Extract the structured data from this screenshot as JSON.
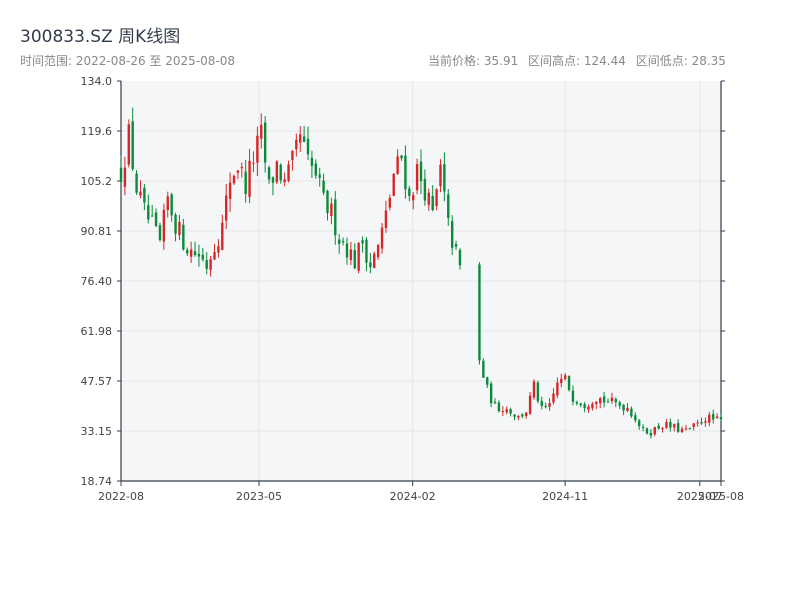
{
  "header": {
    "title": "300833.SZ 周K线图",
    "range_label": "时间范围: 2022-08-26 至 2025-08-08",
    "stat_current": "当前价格: 35.91",
    "stat_high": "区间高点: 124.44",
    "stat_low": "区间低点: 28.35"
  },
  "colors": {
    "up": "#d62728",
    "down": "#0a8a3a",
    "plot_bg": "#f5f6f8",
    "axis": "#333d4a",
    "grid": "#e3e5e8"
  },
  "chart_data": {
    "type": "candlestick",
    "title": "300833.SZ 周K线图",
    "x_start": "2022-08-26",
    "x_end": "2025-08-08",
    "ylim": [
      18.74,
      134.0
    ],
    "y_ticks": [
      "134.0",
      "119.6",
      "105.2",
      "90.81",
      "76.40",
      "61.98",
      "47.57",
      "33.15",
      "18.74"
    ],
    "x_ticks": [
      {
        "date": "2022-08-26",
        "label": "2022-08"
      },
      {
        "date": "2023-05-01",
        "label": "2023-05"
      },
      {
        "date": "2024-02-01",
        "label": "2024-02"
      },
      {
        "date": "2024-11-01",
        "label": "2024-11"
      },
      {
        "date": "2025-07-01",
        "label": "2025-07"
      },
      {
        "date": "2025-08-08",
        "label": "2025-08"
      }
    ],
    "grid": true,
    "series": [
      {
        "name": "",
        "anchors": [
          [
            "2022-08-26",
            108
          ],
          [
            "2022-09-09",
            118
          ],
          [
            "2022-09-23",
            103
          ],
          [
            "2022-10-07",
            96
          ],
          [
            "2022-10-21",
            92
          ],
          [
            "2022-11-04",
            87
          ],
          [
            "2022-11-18",
            100
          ],
          [
            "2022-12-02",
            93
          ],
          [
            "2022-12-16",
            88
          ],
          [
            "2022-12-30",
            85
          ],
          [
            "2023-01-13",
            84
          ],
          [
            "2023-01-27",
            81
          ],
          [
            "2023-02-10",
            87
          ],
          [
            "2023-02-24",
            92
          ],
          [
            "2023-03-10",
            106
          ],
          [
            "2023-03-24",
            110
          ],
          [
            "2023-04-07",
            104
          ],
          [
            "2023-04-21",
            112
          ],
          [
            "2023-05-05",
            118
          ],
          [
            "2023-05-19",
            103
          ],
          [
            "2023-06-02",
            110
          ],
          [
            "2023-06-16",
            104
          ],
          [
            "2023-06-30",
            110
          ],
          [
            "2023-07-14",
            118
          ],
          [
            "2023-07-28",
            110
          ],
          [
            "2023-08-11",
            107
          ],
          [
            "2023-08-25",
            99
          ],
          [
            "2023-09-08",
            96
          ],
          [
            "2023-09-22",
            89
          ],
          [
            "2023-10-06",
            86
          ],
          [
            "2023-10-20",
            82
          ],
          [
            "2023-11-03",
            88
          ],
          [
            "2023-11-17",
            81
          ],
          [
            "2023-12-01",
            86
          ],
          [
            "2023-12-15",
            95
          ],
          [
            "2023-12-29",
            107
          ],
          [
            "2024-01-12",
            112
          ],
          [
            "2024-01-26",
            100
          ],
          [
            "2024-02-09",
            108
          ],
          [
            "2024-02-23",
            103
          ],
          [
            "2024-03-08",
            95
          ],
          [
            "2024-03-22",
            108
          ],
          [
            "2024-04-05",
            92
          ],
          [
            "2024-04-19",
            84
          ],
          [
            "2024-04-26",
            80
          ],
          [
            "2024-05-31",
            53
          ],
          [
            "2024-06-14",
            45
          ],
          [
            "2024-06-28",
            40
          ],
          [
            "2024-07-12",
            40
          ],
          [
            "2024-07-26",
            39
          ],
          [
            "2024-08-09",
            37
          ],
          [
            "2024-08-23",
            39
          ],
          [
            "2024-09-06",
            46
          ],
          [
            "2024-09-20",
            39
          ],
          [
            "2024-10-04",
            40
          ],
          [
            "2024-10-18",
            47
          ],
          [
            "2024-11-01",
            48
          ],
          [
            "2024-11-15",
            43
          ],
          [
            "2024-12-06",
            41
          ],
          [
            "2024-12-27",
            43
          ],
          [
            "2025-01-10",
            42
          ],
          [
            "2025-01-31",
            41
          ],
          [
            "2025-02-21",
            40
          ],
          [
            "2025-03-07",
            37
          ],
          [
            "2025-03-21",
            33
          ],
          [
            "2025-04-04",
            33
          ],
          [
            "2025-04-25",
            35
          ],
          [
            "2025-05-16",
            34
          ],
          [
            "2025-06-06",
            33
          ],
          [
            "2025-06-27",
            35
          ],
          [
            "2025-07-11",
            37
          ],
          [
            "2025-08-08",
            35.91
          ]
        ]
      }
    ]
  }
}
